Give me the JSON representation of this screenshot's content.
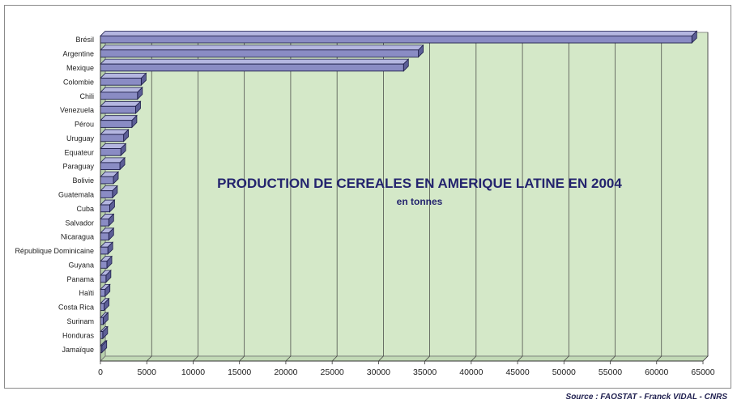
{
  "chart_data": {
    "type": "bar",
    "orientation": "horizontal",
    "title": "PRODUCTION DE CEREALES EN AMERIQUE LATINE EN 2004",
    "subtitle": "en tonnes",
    "categories": [
      "Brésil",
      "Argentine",
      "Mexique",
      "Colombie",
      "Chili",
      "Venezuela",
      "Pérou",
      "Uruguay",
      "Equateur",
      "Paraguay",
      "Bolivie",
      "Guatemala",
      "Cuba",
      "Salvador",
      "Nicaragua",
      "République Dominicaine",
      "Guyana",
      "Panama",
      "Haïti",
      "Costa Rica",
      "Surinam",
      "Honduras",
      "Jamaïque"
    ],
    "values": [
      63800,
      34300,
      32700,
      4400,
      4000,
      3800,
      3400,
      2500,
      2200,
      2100,
      1400,
      1300,
      1000,
      900,
      900,
      800,
      700,
      600,
      500,
      400,
      300,
      250,
      150
    ],
    "xlim": [
      0,
      65000
    ],
    "xticks": [
      "0",
      "5000",
      "10000",
      "15000",
      "20000",
      "25000",
      "30000",
      "35000",
      "40000",
      "45000",
      "50000",
      "55000",
      "60000",
      "65000"
    ],
    "grid": true,
    "colors": {
      "plot_bg": "#d4e8c8",
      "bar_fill": "#8a8cc4",
      "bar_edge": "#1e1e4a",
      "title": "#24246e"
    }
  },
  "source": "Source : FAOSTAT - Franck VIDAL - CNRS"
}
